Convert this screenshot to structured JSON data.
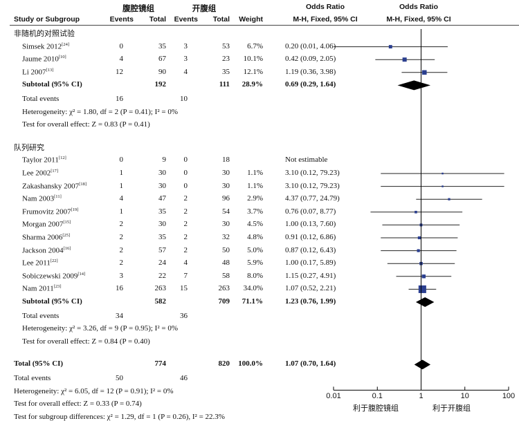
{
  "header": {
    "study": "Study or Subgroup",
    "group1": "腹腔镜组",
    "group2": "开腹组",
    "events": "Events",
    "total": "Total",
    "weight": "Weight",
    "or_title": "Odds Ratio",
    "or_method": "M-H, Fixed, 95% CI"
  },
  "chart_data": {
    "type": "forest",
    "x_axis": {
      "scale": "log",
      "ticks": [
        "0.01",
        "0.1",
        "1",
        "10",
        "100"
      ],
      "tick_values": [
        0.01,
        0.1,
        1,
        10,
        100
      ],
      "range": [
        0.01,
        100
      ],
      "left_label": "利于腹腔镜组",
      "right_label": "利于开腹组"
    },
    "subgroups": [
      {
        "title": "非随机的对照试验",
        "studies": [
          {
            "name": "Simsek 2012",
            "ref": "[24]",
            "e1": "0",
            "t1": "35",
            "e2": "3",
            "t2": "53",
            "weight": "6.7%",
            "ci": "0.20 (0.01, 4.06)",
            "or": 0.2,
            "lo": 0.01,
            "hi": 4.06
          },
          {
            "name": "Jaume 2010",
            "ref": "[10]",
            "e1": "4",
            "t1": "67",
            "e2": "3",
            "t2": "23",
            "weight": "10.1%",
            "ci": "0.42 (0.09, 2.05)",
            "or": 0.42,
            "lo": 0.09,
            "hi": 2.05
          },
          {
            "name": "Li 2007",
            "ref": "[13]",
            "e1": "12",
            "t1": "90",
            "e2": "4",
            "t2": "35",
            "weight": "12.1%",
            "ci": "1.19 (0.36, 3.98)",
            "or": 1.19,
            "lo": 0.36,
            "hi": 3.98
          }
        ],
        "subtotal": {
          "label": "Subtotal (95% CI)",
          "t1": "192",
          "t2": "111",
          "weight": "28.9%",
          "ci": "0.69 (0.29, 1.64)",
          "or": 0.69,
          "lo": 0.29,
          "hi": 1.64
        },
        "total_events": {
          "label": "Total events",
          "e1": "16",
          "e2": "10"
        },
        "heterogeneity": "Heterogeneity: χ² = 1.80, df = 2 (P = 0.41); I² = 0%",
        "overall": "Test for overall effect: Z = 0.83 (P = 0.41)"
      },
      {
        "title": "队列研究",
        "studies": [
          {
            "name": "Taylor 2011",
            "ref": "[12]",
            "e1": "0",
            "t1": "9",
            "e2": "0",
            "t2": "18",
            "weight": "",
            "ci": "Not estimable",
            "or": null,
            "lo": null,
            "hi": null
          },
          {
            "name": "Lee 2002",
            "ref": "[17]",
            "e1": "1",
            "t1": "30",
            "e2": "0",
            "t2": "30",
            "weight": "1.1%",
            "ci": "3.10 (0.12, 79.23)",
            "or": 3.1,
            "lo": 0.12,
            "hi": 79.23
          },
          {
            "name": "Zakashansky 2007",
            "ref": "[18]",
            "e1": "1",
            "t1": "30",
            "e2": "0",
            "t2": "30",
            "weight": "1.1%",
            "ci": "3.10 (0.12, 79.23)",
            "or": 3.1,
            "lo": 0.12,
            "hi": 79.23
          },
          {
            "name": "Nam 2003",
            "ref": "[11]",
            "e1": "4",
            "t1": "47",
            "e2": "2",
            "t2": "96",
            "weight": "2.9%",
            "ci": "4.37 (0.77, 24.79)",
            "or": 4.37,
            "lo": 0.77,
            "hi": 24.79
          },
          {
            "name": "Frumovitz 2007",
            "ref": "[19]",
            "e1": "1",
            "t1": "35",
            "e2": "2",
            "t2": "54",
            "weight": "3.7%",
            "ci": "0.76 (0.07, 8.77)",
            "or": 0.76,
            "lo": 0.07,
            "hi": 8.77
          },
          {
            "name": "Morgan 2007",
            "ref": "[15]",
            "e1": "2",
            "t1": "30",
            "e2": "2",
            "t2": "30",
            "weight": "4.5%",
            "ci": "1.00 (0.13, 7.60)",
            "or": 1.0,
            "lo": 0.13,
            "hi": 7.6
          },
          {
            "name": "Sharma 2006",
            "ref": "[25]",
            "e1": "2",
            "t1": "35",
            "e2": "2",
            "t2": "32",
            "weight": "4.8%",
            "ci": "0.91 (0.12, 6.86)",
            "or": 0.91,
            "lo": 0.12,
            "hi": 6.86
          },
          {
            "name": "Jackson 2004",
            "ref": "[16]",
            "e1": "2",
            "t1": "57",
            "e2": "2",
            "t2": "50",
            "weight": "5.0%",
            "ci": "0.87 (0.12, 6.43)",
            "or": 0.87,
            "lo": 0.12,
            "hi": 6.43
          },
          {
            "name": "Lee 2011",
            "ref": "[22]",
            "e1": "2",
            "t1": "24",
            "e2": "4",
            "t2": "48",
            "weight": "5.9%",
            "ci": "1.00 (0.17, 5.89)",
            "or": 1.0,
            "lo": 0.17,
            "hi": 5.89
          },
          {
            "name": "Sobiczewski 2009",
            "ref": "[14]",
            "e1": "3",
            "t1": "22",
            "e2": "7",
            "t2": "58",
            "weight": "8.0%",
            "ci": "1.15 (0.27, 4.91)",
            "or": 1.15,
            "lo": 0.27,
            "hi": 4.91
          },
          {
            "name": "Nam 2011",
            "ref": "[23]",
            "e1": "16",
            "t1": "263",
            "e2": "15",
            "t2": "263",
            "weight": "34.0%",
            "ci": "1.07 (0.52, 2.21)",
            "or": 1.07,
            "lo": 0.52,
            "hi": 2.21
          }
        ],
        "subtotal": {
          "label": "Subtotal (95% CI)",
          "t1": "582",
          "t2": "709",
          "weight": "71.1%",
          "ci": "1.23 (0.76, 1.99)",
          "or": 1.23,
          "lo": 0.76,
          "hi": 1.99
        },
        "total_events": {
          "label": "Total events",
          "e1": "34",
          "e2": "36"
        },
        "heterogeneity": "Heterogeneity: χ² = 3.26, df = 9 (P = 0.95); I² = 0%",
        "overall": "Test for overall effect: Z = 0.84 (P = 0.40)"
      }
    ],
    "total": {
      "label": "Total (95% CI)",
      "t1": "774",
      "t2": "820",
      "weight": "100.0%",
      "ci": "1.07 (0.70, 1.64)",
      "or": 1.07,
      "lo": 0.7,
      "hi": 1.64
    },
    "total_events": {
      "label": "Total events",
      "e1": "50",
      "e2": "46"
    },
    "heterogeneity": "Heterogeneity: χ² = 6.05, df = 12 (P = 0.91); I² = 0%",
    "overall": "Test for overall effect: Z = 0.33 (P = 0.74)",
    "subgroup_diff": "Test for subgroup differences: χ² = 1.29, df = 1 (P = 0.26), I² = 22.3%"
  },
  "colors": {
    "square": "#2b3f8f",
    "diamond": "#000000",
    "line": "#222222"
  }
}
